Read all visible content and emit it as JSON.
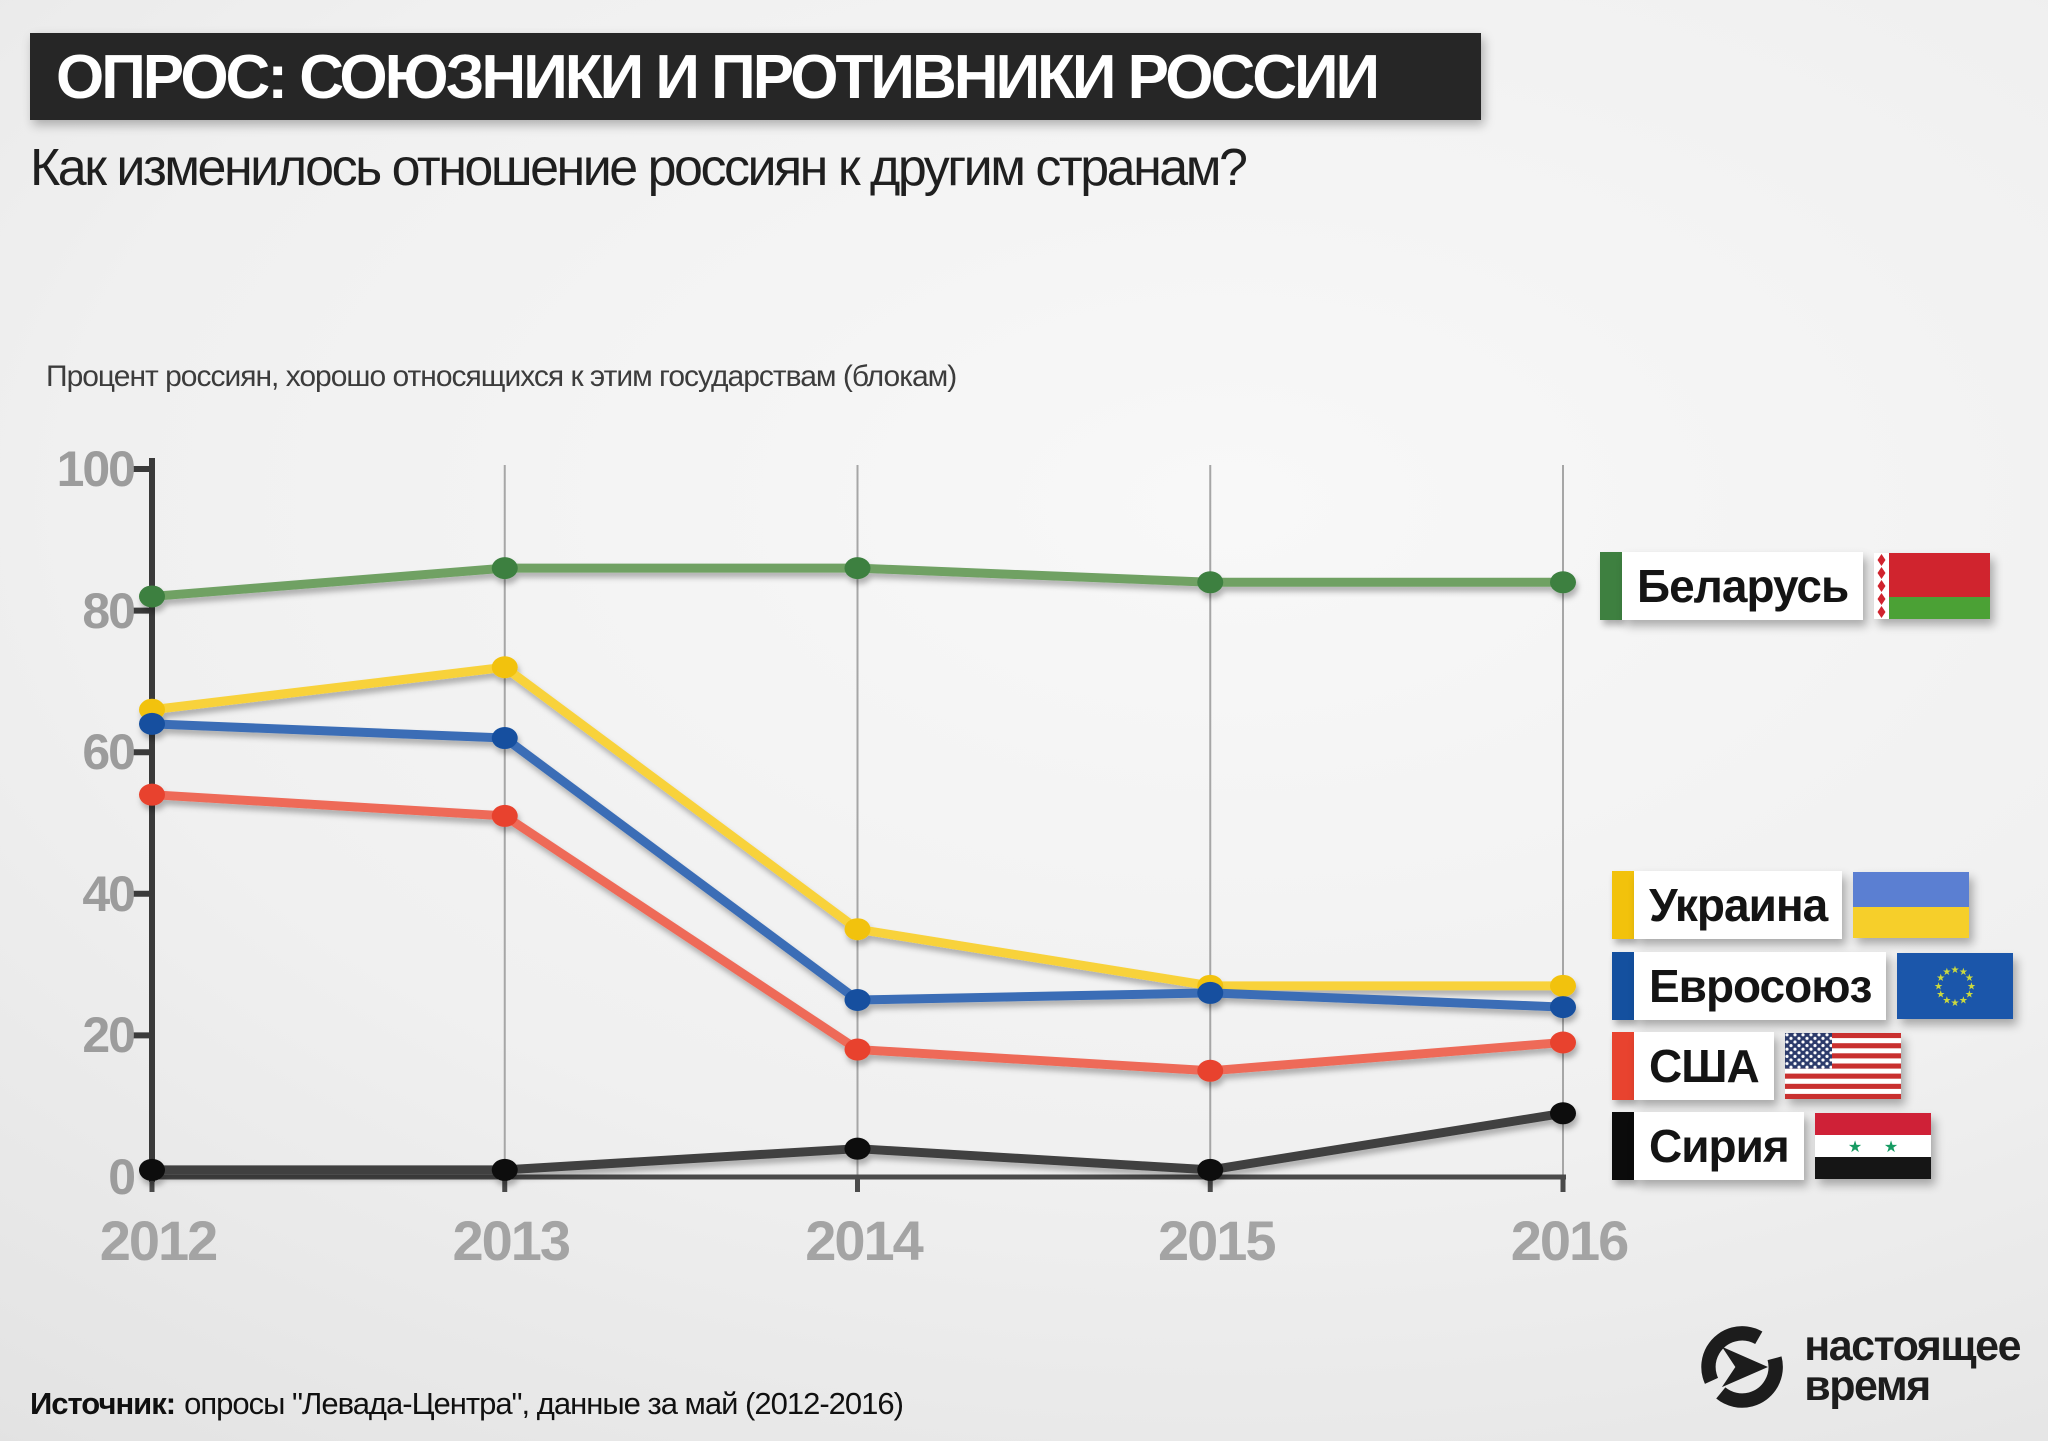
{
  "header": {
    "title": "ОПРОС: СОЮЗНИКИ И ПРОТИВНИКИ РОССИИ",
    "subtitle": "Как изменилось отношение россиян к другим странам?"
  },
  "chart_data": {
    "type": "line",
    "title": "ОПРОС: СОЮЗНИКИ И ПРОТИВНИКИ РОССИИ",
    "ylabel": "Процент россиян, хорошо относящихся к этим государствам (блокам)",
    "xlabel": "",
    "categories": [
      "2012",
      "2013",
      "2014",
      "2015",
      "2016"
    ],
    "yticks": [
      100,
      80,
      60,
      40,
      20,
      0
    ],
    "ylim": [
      0,
      100
    ],
    "grid": "vertical-year-lines",
    "legend_position": "right",
    "series": [
      {
        "name": "Беларусь",
        "values": [
          82,
          86,
          86,
          84,
          84
        ],
        "color": "#6fa164",
        "dot_color": "#3e8040",
        "flag": "belarus"
      },
      {
        "name": "Украина",
        "values": [
          66,
          72,
          35,
          27,
          27
        ],
        "color": "#f8d23a",
        "dot_color": "#f2c20c",
        "flag": "ukraine"
      },
      {
        "name": "Евросоюз",
        "values": [
          64,
          62,
          25,
          26,
          24
        ],
        "color": "#3b6db6",
        "dot_color": "#14509f",
        "flag": "eu"
      },
      {
        "name": "США",
        "values": [
          54,
          51,
          18,
          15,
          19
        ],
        "color": "#ee6a58",
        "dot_color": "#e8432f",
        "flag": "usa"
      },
      {
        "name": "Сирия",
        "values": [
          1,
          1,
          4,
          1,
          9
        ],
        "color": "#404040",
        "dot_color": "#0b0b0b",
        "flag": "syria"
      }
    ]
  },
  "source": {
    "prefix": "Источник:",
    "text": "опросы \"Левада-Центра\", данные за май (2012-2016)"
  },
  "logo": {
    "line1": "настоящее",
    "line2": "время"
  }
}
